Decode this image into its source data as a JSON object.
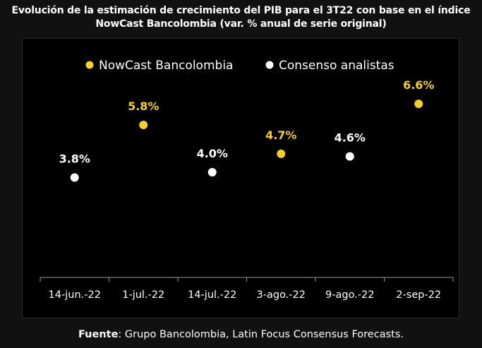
{
  "title_line1": "Evolución de la estimación de crecimiento del PIB para el  3T22 con base en el índice",
  "title_line2": "NowCast Bancolombia (var. % anual de serie original)",
  "footer_label": "Fuente",
  "footer_text": ": Grupo Bancolombia, Latin Focus Consensus Forecasts.",
  "colors": {
    "nowcast": "#f5cf2a",
    "consenso": "#ffffff",
    "background": "#000000"
  },
  "chart_data": {
    "type": "scatter",
    "categories": [
      "14-jun.-22",
      "1-jul.-22",
      "14-jul.-22",
      "3-ago.-22",
      "9-ago.-22",
      "2-sep-22"
    ],
    "series": [
      {
        "name": "NowCast Bancolombia",
        "color": "#f5cf2a",
        "points": [
          {
            "x": "1-jul.-22",
            "y": 5.8,
            "label": "5.8%"
          },
          {
            "x": "3-ago.-22",
            "y": 4.7,
            "label": "4.7%"
          },
          {
            "x": "2-sep-22",
            "y": 6.6,
            "label": "6.6%"
          }
        ]
      },
      {
        "name": "Consenso analistas",
        "color": "#ffffff",
        "points": [
          {
            "x": "14-jun.-22",
            "y": 3.8,
            "label": "3.8%"
          },
          {
            "x": "14-jul.-22",
            "y": 4.0,
            "label": "4.0%"
          },
          {
            "x": "9-ago.-22",
            "y": 4.6,
            "label": "4.6%"
          }
        ]
      }
    ],
    "ylim": [
      0,
      8
    ],
    "grid": false,
    "legend_position": "top"
  }
}
